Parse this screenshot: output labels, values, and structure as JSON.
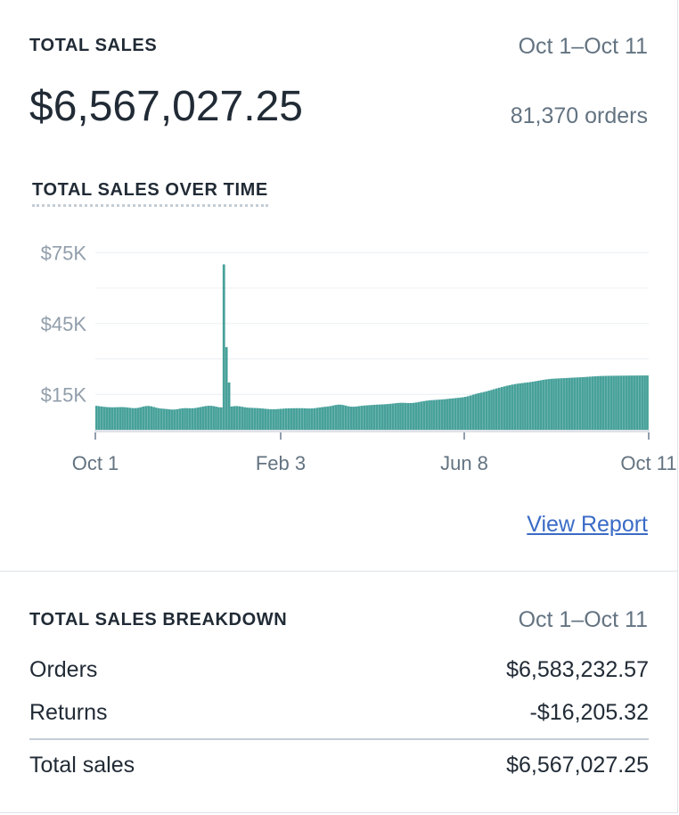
{
  "sales_card": {
    "title": "TOTAL SALES",
    "date_range": "Oct 1–Oct 11",
    "total": "$6,567,027.25",
    "orders": "81,370 orders",
    "chart_title": "TOTAL SALES OVER TIME",
    "view_report": "View Report"
  },
  "chart_data": {
    "type": "bar",
    "title": "TOTAL SALES OVER TIME",
    "x_tick_labels": [
      "Oct 1",
      "Feb 3",
      "Jun 8",
      "Oct 11"
    ],
    "y_tick_labels": [
      "$75K",
      "$45K",
      "$15K"
    ],
    "y_ticks": [
      75000,
      45000,
      15000
    ],
    "ylim": [
      0,
      80000
    ],
    "grid": true,
    "bar_color": "#47a19a",
    "series": [
      {
        "values": [
          10142,
          10000,
          9845,
          9716,
          9614,
          9548,
          9523,
          9538,
          9577,
          9614,
          9613,
          9551,
          9430,
          9285,
          9179,
          9175,
          9307,
          9553,
          9837,
          10049,
          10094,
          9948,
          9667,
          9365,
          9133,
          8990,
          8890,
          8785,
          8665,
          8576,
          8587,
          8721,
          8923,
          9094,
          9166,
          9149,
          9110,
          9122,
          9225,
          9408,
          9632,
          9855,
          10043,
          10159,
          10164,
          10038,
          9807,
          9577,
          9486,
          70000,
          35000,
          20000,
          9858,
          10009,
          10044,
          9943,
          9757,
          9560,
          9411,
          9322,
          9272,
          9231,
          9176,
          9095,
          8995,
          8889,
          8794,
          8729,
          8707,
          8733,
          8799,
          8887,
          8973,
          9041,
          9084,
          9108,
          9125,
          9141,
          9151,
          9139,
          9098,
          9044,
          9016,
          9049,
          9154,
          9308,
          9473,
          9615,
          9733,
          9859,
          10031,
          10255,
          10485,
          10636,
          10637,
          10475,
          10208,
          9947,
          9789,
          9771,
          9864,
          10008,
          10149,
          10262,
          10349,
          10427,
          10506,
          10583,
          10652,
          10710,
          10760,
          10816,
          10889,
          10988,
          11114,
          11249,
          11362,
          11422,
          11418,
          11371,
          11324,
          11326,
          11406,
          11558,
          11755,
          11963,
          12155,
          12318,
          12446,
          12545,
          12624,
          12696,
          12771,
          12855,
          12950,
          13057,
          13172,
          13287,
          13397,
          13504,
          13618,
          13760,
          13953,
          14214,
          14534,
          14877,
          15200,
          15483,
          15733,
          15977,
          16244,
          16546,
          16869,
          17194,
          17507,
          17805,
          18093,
          18374,
          18643,
          18896,
          19126,
          19330,
          19508,
          19662,
          19798,
          19927,
          20060,
          20206,
          20372,
          20558,
          20757,
          20959,
          21149,
          21317,
          21454,
          21560,
          21639,
          21701,
          21756,
          21812,
          21871,
          21931,
          21990,
          22048,
          22104,
          22160,
          22218,
          22280,
          22349,
          22423,
          22500,
          22576,
          22645,
          22706,
          22755,
          22793,
          22821,
          22841,
          22857,
          22871,
          22884,
          22898,
          22911,
          22924,
          22936,
          22948,
          22958,
          22968,
          22977,
          22985,
          22991,
          22996,
          23000
        ],
        "peak_labels": []
      }
    ]
  },
  "breakdown": {
    "title": "TOTAL SALES BREAKDOWN",
    "date_range": "Oct 1–Oct 11",
    "rows": [
      {
        "label": "Orders",
        "value": "$6,583,232.57"
      },
      {
        "label": "Returns",
        "value": "-$16,205.32"
      }
    ],
    "total": {
      "label": "Total sales",
      "value": "$6,567,027.25"
    }
  },
  "colors": {
    "accent": "#47a19a",
    "link": "#3a6bc6",
    "muted": "#637381"
  }
}
